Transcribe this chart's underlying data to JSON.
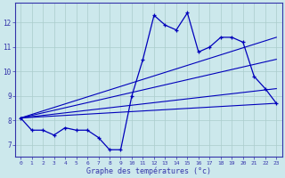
{
  "x": [
    0,
    1,
    2,
    3,
    4,
    5,
    6,
    7,
    8,
    9,
    10,
    11,
    12,
    13,
    14,
    15,
    16,
    17,
    18,
    19,
    20,
    21,
    22,
    23
  ],
  "y_main": [
    8.1,
    7.6,
    7.6,
    7.4,
    7.7,
    7.6,
    7.6,
    7.3,
    6.8,
    6.8,
    9.0,
    10.5,
    12.3,
    11.9,
    11.7,
    12.4,
    10.8,
    11.0,
    11.4,
    11.4,
    11.2,
    9.8,
    9.3,
    8.7
  ],
  "reg_lines": [
    {
      "x0": 0,
      "y0": 8.1,
      "x1": 23,
      "y1": 8.7
    },
    {
      "x0": 0,
      "y0": 8.1,
      "x1": 23,
      "y1": 9.3
    },
    {
      "x0": 0,
      "y0": 8.1,
      "x1": 23,
      "y1": 10.5
    },
    {
      "x0": 0,
      "y0": 8.1,
      "x1": 23,
      "y1": 11.4
    }
  ],
  "line_color": "#0000bb",
  "bg_color": "#cce8ec",
  "grid_color": "#aacccc",
  "axis_color": "#3333aa",
  "ylim": [
    6.5,
    12.8
  ],
  "xlim": [
    -0.5,
    23.5
  ],
  "ylabel_ticks": [
    7,
    8,
    9,
    10,
    11,
    12
  ],
  "xlabel": "Graphe des températures (°c)",
  "figwidth": 3.2,
  "figheight": 2.0,
  "dpi": 100
}
